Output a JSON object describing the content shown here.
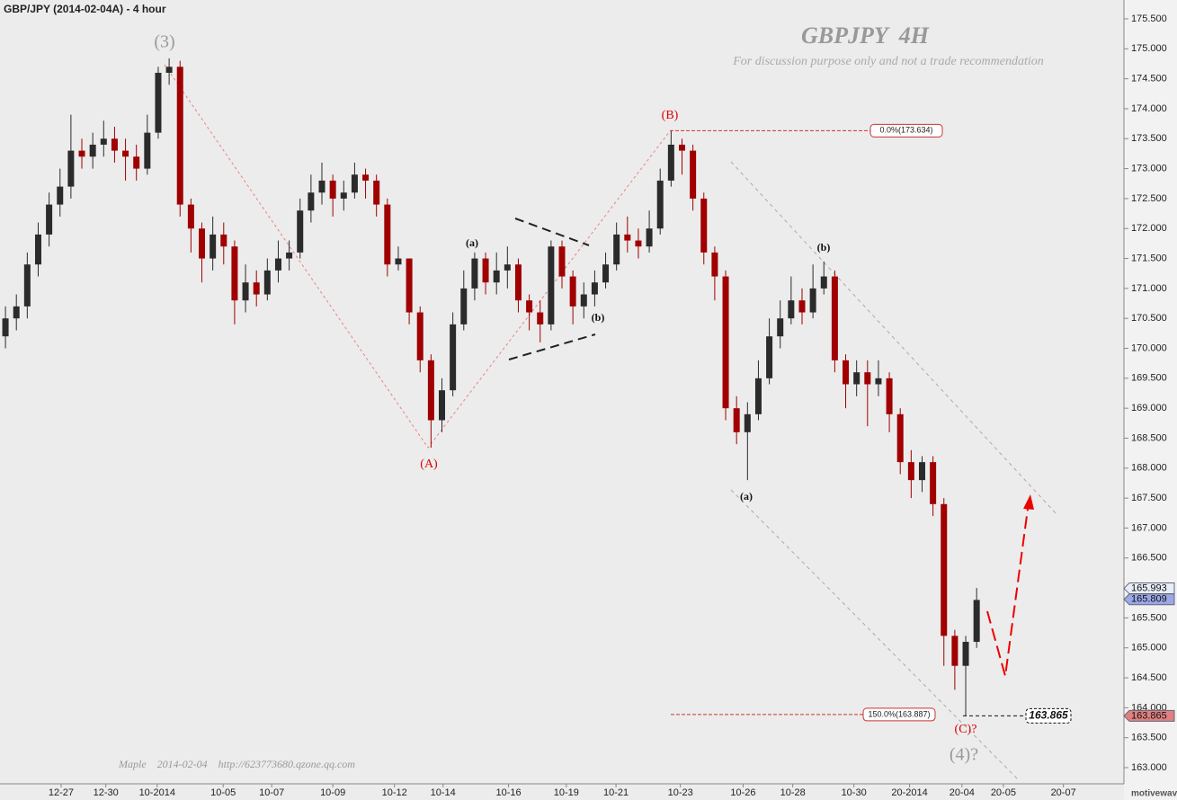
{
  "chart_data": {
    "type": "candlestick",
    "title": "GBP/JPY (2014-02-04A) - 4 hour",
    "watermark": "GBPJPY  4H",
    "subtitle": "For discussion purpose only and not a trade recommendation",
    "footer": "Maple    2014-02-04    http://623773680.qzone.qq.com",
    "brand": "motivewave.com",
    "up_color": "#2b2b2b",
    "down_color": "#a00000",
    "xlim": [
      0,
      206
    ],
    "ylim": [
      162.73,
      175.815
    ],
    "xticks": [
      {
        "value": 11.2,
        "label": "12-27"
      },
      {
        "value": 19.4,
        "label": "12-30"
      },
      {
        "value": 28.8,
        "label": "10-2014"
      },
      {
        "value": 40.9,
        "label": "10-05"
      },
      {
        "value": 49.8,
        "label": "10-07"
      },
      {
        "value": 61,
        "label": "10-09"
      },
      {
        "value": 72.3,
        "label": "10-12"
      },
      {
        "value": 81.2,
        "label": "10-14"
      },
      {
        "value": 93.2,
        "label": "10-16"
      },
      {
        "value": 103.8,
        "label": "10-19"
      },
      {
        "value": 112.9,
        "label": "10-21"
      },
      {
        "value": 124.7,
        "label": "10-23"
      },
      {
        "value": 136.2,
        "label": "10-26"
      },
      {
        "value": 145.3,
        "label": "10-28"
      },
      {
        "value": 156.5,
        "label": "10-30"
      },
      {
        "value": 166.7,
        "label": "20-2014"
      },
      {
        "value": 176.3,
        "label": "20-04"
      },
      {
        "value": 183.9,
        "label": "20-05"
      },
      {
        "value": 194.9,
        "label": "20-07"
      }
    ],
    "yticks": [
      {
        "value": 163,
        "label": "163.000"
      },
      {
        "value": 163.5,
        "label": "163.500"
      },
      {
        "value": 164,
        "label": "164.000"
      },
      {
        "value": 164.5,
        "label": "164.500"
      },
      {
        "value": 165,
        "label": "165.000"
      },
      {
        "value": 165.5,
        "label": "165.500"
      },
      {
        "value": 166,
        "label": "166.000"
      },
      {
        "value": 166.5,
        "label": "166.500"
      },
      {
        "value": 167,
        "label": "167.000"
      },
      {
        "value": 167.5,
        "label": "167.500"
      },
      {
        "value": 168,
        "label": "168.000"
      },
      {
        "value": 168.5,
        "label": "168.500"
      },
      {
        "value": 169,
        "label": "169.000"
      },
      {
        "value": 169.5,
        "label": "169.500"
      },
      {
        "value": 170,
        "label": "170.000"
      },
      {
        "value": 170.5,
        "label": "170.500"
      },
      {
        "value": 171,
        "label": "171.000"
      },
      {
        "value": 171.5,
        "label": "171.500"
      },
      {
        "value": 172,
        "label": "172.000"
      },
      {
        "value": 172.5,
        "label": "172.500"
      },
      {
        "value": 173,
        "label": "173.000"
      },
      {
        "value": 173.5,
        "label": "173.500"
      },
      {
        "value": 174,
        "label": "174.000"
      },
      {
        "value": 174.5,
        "label": "174.500"
      },
      {
        "value": 175,
        "label": "175.000"
      },
      {
        "value": 175.5,
        "label": "175.500"
      }
    ],
    "x": [
      1,
      3,
      5,
      7,
      9,
      11,
      13,
      15,
      17,
      19,
      21,
      23,
      25,
      27,
      29,
      31,
      33,
      35,
      37,
      39,
      41,
      43,
      45,
      47,
      49,
      51,
      53,
      55,
      57,
      59,
      61,
      63,
      65,
      67,
      69,
      71,
      73,
      75,
      77,
      79,
      81,
      83,
      85,
      87,
      89,
      91,
      93,
      95,
      97,
      99,
      101,
      103,
      105,
      107,
      109,
      111,
      113,
      115,
      117,
      119,
      121,
      123,
      125,
      127,
      129,
      131,
      133,
      135,
      137,
      139,
      141,
      143,
      145,
      147,
      149,
      151,
      153,
      155,
      157,
      159,
      161,
      163,
      165,
      167,
      169,
      171,
      173,
      175,
      177,
      179
    ],
    "series": [
      {
        "open": [
          170.2,
          170.5,
          170.7,
          171.4,
          171.9,
          172.4,
          172.7,
          173.3,
          173.2,
          173.4,
          173.5,
          173.3,
          173.2,
          173.0,
          173.6,
          174.6,
          174.7,
          172.4,
          172.0,
          171.5,
          171.9,
          171.7,
          170.8,
          171.1,
          170.9,
          171.3,
          171.5,
          171.6,
          172.3,
          172.6,
          172.8,
          172.5,
          172.6,
          172.9,
          172.8,
          172.4,
          171.4,
          171.5,
          170.6,
          169.8,
          168.8,
          169.3,
          170.4,
          171.0,
          171.5,
          171.1,
          171.3,
          171.4,
          170.8,
          170.6,
          170.4,
          171.7,
          171.2,
          170.7,
          170.9,
          171.1,
          171.4,
          171.9,
          171.8,
          171.7,
          172.0,
          172.8,
          173.4,
          173.3,
          172.5,
          171.6,
          171.2,
          169.0,
          168.6,
          168.9,
          169.5,
          170.2,
          170.5,
          170.8,
          170.6,
          171.0,
          171.2,
          169.8,
          169.4,
          169.6,
          169.4,
          169.5,
          168.9,
          168.1,
          167.8,
          168.1,
          167.4,
          165.2,
          164.7,
          165.1
        ],
        "high": [
          170.7,
          170.9,
          171.6,
          172.1,
          172.6,
          173.0,
          173.9,
          173.5,
          173.6,
          173.8,
          173.7,
          173.5,
          173.4,
          173.9,
          174.7,
          174.84,
          174.8,
          172.5,
          172.1,
          172.2,
          172.1,
          171.8,
          171.4,
          171.3,
          171.5,
          171.8,
          171.8,
          172.5,
          172.9,
          173.1,
          172.9,
          172.8,
          173.1,
          173.0,
          172.9,
          172.5,
          171.7,
          171.5,
          170.7,
          169.9,
          169.5,
          170.6,
          171.3,
          171.6,
          171.6,
          171.6,
          171.7,
          171.5,
          170.9,
          170.8,
          171.8,
          171.8,
          171.3,
          171.1,
          171.3,
          171.6,
          172.1,
          172.2,
          172.0,
          172.3,
          173.0,
          173.634,
          173.5,
          173.4,
          172.6,
          171.7,
          171.3,
          169.2,
          169.1,
          169.8,
          170.5,
          170.8,
          171.2,
          171.0,
          171.4,
          171.45,
          171.3,
          169.9,
          169.8,
          169.8,
          169.8,
          169.6,
          169.0,
          168.3,
          168.2,
          168.2,
          167.5,
          165.3,
          165.2,
          166.0
        ],
        "low": [
          170.0,
          170.3,
          170.5,
          171.2,
          171.7,
          172.2,
          172.5,
          173.0,
          173.0,
          173.2,
          173.1,
          172.8,
          172.8,
          172.9,
          173.5,
          174.4,
          172.2,
          171.6,
          171.1,
          171.3,
          171.4,
          170.4,
          170.6,
          170.7,
          170.8,
          171.1,
          171.3,
          171.5,
          172.1,
          172.4,
          172.2,
          172.3,
          172.5,
          172.5,
          172.2,
          171.2,
          171.3,
          170.4,
          169.6,
          168.34,
          168.6,
          169.2,
          170.3,
          170.8,
          170.9,
          170.9,
          171.0,
          170.6,
          170.3,
          170.1,
          170.3,
          171.0,
          170.4,
          170.5,
          170.7,
          171.0,
          171.3,
          171.6,
          171.5,
          171.6,
          171.9,
          172.7,
          172.9,
          172.3,
          171.4,
          170.8,
          168.8,
          168.4,
          167.8,
          168.8,
          169.4,
          170.0,
          170.4,
          170.4,
          170.5,
          170.9,
          169.6,
          169.0,
          169.2,
          168.7,
          169.2,
          168.6,
          167.9,
          167.5,
          167.6,
          167.2,
          164.7,
          164.3,
          163.865,
          165.0
        ],
        "close": [
          170.5,
          170.7,
          171.4,
          171.9,
          172.4,
          172.7,
          173.3,
          173.2,
          173.4,
          173.5,
          173.3,
          173.2,
          173.0,
          173.6,
          174.6,
          174.7,
          172.4,
          172.0,
          171.5,
          171.9,
          171.7,
          170.8,
          171.1,
          170.9,
          171.3,
          171.5,
          171.6,
          172.3,
          172.6,
          172.8,
          172.5,
          172.6,
          172.9,
          172.8,
          172.4,
          171.4,
          171.5,
          170.6,
          169.8,
          168.8,
          169.3,
          170.4,
          171.0,
          171.5,
          171.1,
          171.3,
          171.4,
          170.8,
          170.6,
          170.4,
          171.7,
          171.2,
          170.7,
          170.9,
          171.1,
          171.4,
          171.9,
          171.8,
          171.7,
          172.0,
          172.8,
          173.4,
          173.3,
          172.5,
          171.6,
          171.2,
          169.0,
          168.6,
          168.9,
          169.5,
          170.2,
          170.5,
          170.8,
          170.6,
          171.0,
          171.2,
          169.8,
          169.4,
          169.6,
          169.4,
          169.5,
          168.9,
          168.1,
          167.8,
          168.1,
          167.4,
          165.2,
          164.7,
          165.1,
          165.8
        ]
      }
    ],
    "price_markers": [
      {
        "value": 165.993,
        "label": "165.993",
        "color": "#e8eef8"
      },
      {
        "value": 165.809,
        "label": "165.809",
        "color": "#9aa8e8"
      },
      {
        "value": 163.865,
        "label": "163.865",
        "color": "#e08080"
      }
    ],
    "fib_levels": [
      {
        "value": 173.634,
        "label": "0.0%(173.634)"
      },
      {
        "value": 163.887,
        "label": "150.0%(163.887)"
      }
    ],
    "low_marker": {
      "value": 163.865,
      "label": "163.865"
    },
    "wave_labels": [
      "(3)",
      "(A)",
      "(B)",
      "(a)",
      "(b)",
      "(b)",
      "(a)",
      "(C)?",
      "(4)?"
    ]
  }
}
